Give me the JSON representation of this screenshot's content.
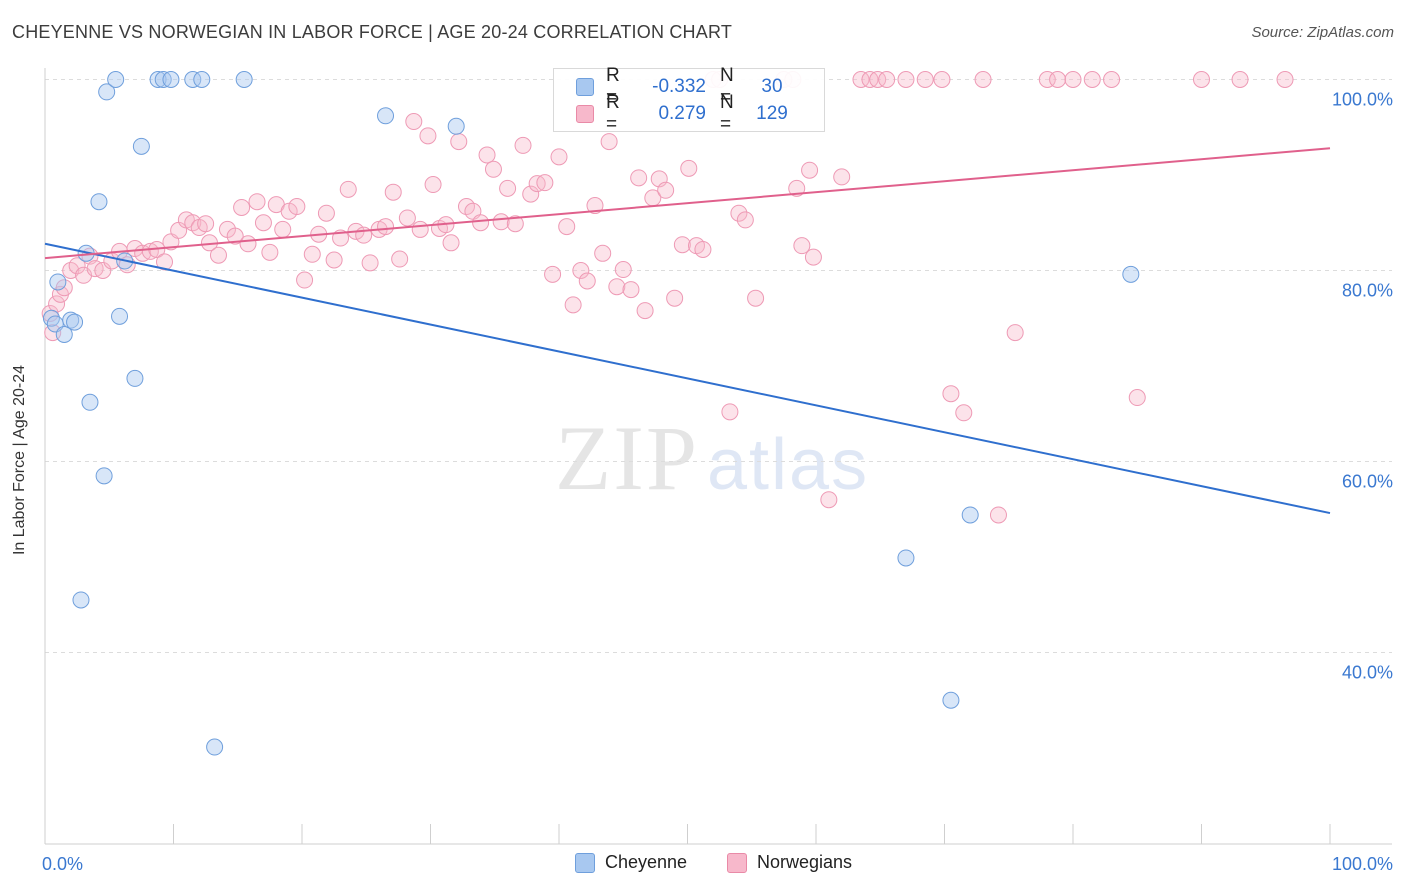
{
  "header": {
    "title": "CHEYENNE VS NORWEGIAN IN LABOR FORCE | AGE 20-24 CORRELATION CHART",
    "source": "Source: ZipAtlas.com"
  },
  "watermark": {
    "zip": "ZIP",
    "atlas": "atlas"
  },
  "legend": {
    "rows": [
      {
        "r_label": "R =",
        "r_value": "-0.332",
        "n_label": "N =",
        "n_value": "30",
        "color": "#a8c8f0",
        "border": "#6f9fdc"
      },
      {
        "r_label": "R =",
        "r_value": "0.279",
        "n_label": "N =",
        "n_value": "129",
        "color": "#f7b8cb",
        "border": "#e98aa7"
      }
    ]
  },
  "bottom_legend": [
    {
      "name": "Cheyenne",
      "color": "#a8c8f0",
      "border": "#6f9fdc"
    },
    {
      "name": "Norwegians",
      "color": "#f7b8cb",
      "border": "#e98aa7"
    }
  ],
  "chart_data": {
    "type": "scatter",
    "title": "CHEYENNE VS NORWEGIAN IN LABOR FORCE | AGE 20-24 CORRELATION CHART",
    "ylabel": "In Labor Force | Age 20-24",
    "xlabel": "",
    "x_tick_labels": [
      "0.0%",
      "100.0%"
    ],
    "y_tick_labels": [
      "100.0%",
      "80.0%",
      "60.0%",
      "40.0%"
    ],
    "y_ticks": [
      100,
      80,
      60,
      40
    ],
    "xlim": [
      0,
      100
    ],
    "ylim": [
      22,
      102
    ],
    "grid": "horizontal dashed",
    "colors": {
      "cheyenne": "#5b93de",
      "cheyenne_line": "#2f6fce",
      "norwegian": "#ee8fae",
      "norwegian_line": "#e0608c"
    },
    "series": [
      {
        "name": "Cheyenne",
        "trend": {
          "x": [
            0,
            100
          ],
          "y": [
            82.8,
            54.6
          ]
        },
        "points": [
          [
            0.5,
            75.0
          ],
          [
            0.8,
            74.4
          ],
          [
            1.0,
            78.8
          ],
          [
            1.5,
            73.3
          ],
          [
            2.0,
            74.8
          ],
          [
            2.3,
            74.6
          ],
          [
            2.8,
            45.5
          ],
          [
            3.2,
            81.8
          ],
          [
            3.5,
            66.2
          ],
          [
            4.2,
            87.2
          ],
          [
            4.6,
            58.5
          ],
          [
            4.8,
            98.7
          ],
          [
            5.5,
            100
          ],
          [
            5.8,
            75.2
          ],
          [
            6.2,
            81.0
          ],
          [
            7.0,
            68.7
          ],
          [
            7.5,
            93.0
          ],
          [
            8.8,
            100
          ],
          [
            9.2,
            100
          ],
          [
            9.8,
            100
          ],
          [
            11.5,
            100
          ],
          [
            12.2,
            100
          ],
          [
            13.2,
            30.1
          ],
          [
            15.5,
            100
          ],
          [
            26.5,
            96.2
          ],
          [
            32.0,
            95.1
          ],
          [
            67.0,
            49.9
          ],
          [
            72.0,
            54.4
          ],
          [
            70.5,
            35.0
          ],
          [
            84.5,
            79.6
          ]
        ]
      },
      {
        "name": "Norwegians",
        "trend": {
          "x": [
            0,
            100
          ],
          "y": [
            81.3,
            92.8
          ]
        },
        "points": [
          [
            0.4,
            75.5
          ],
          [
            0.6,
            73.5
          ],
          [
            0.9,
            76.5
          ],
          [
            1.2,
            77.5
          ],
          [
            1.5,
            78.2
          ],
          [
            2.0,
            80.0
          ],
          [
            2.5,
            80.5
          ],
          [
            3.0,
            79.5
          ],
          [
            3.5,
            81.5
          ],
          [
            3.9,
            80.2
          ],
          [
            4.5,
            80.0
          ],
          [
            5.2,
            81.0
          ],
          [
            5.8,
            82.0
          ],
          [
            6.4,
            80.6
          ],
          [
            7.0,
            82.3
          ],
          [
            7.6,
            81.8
          ],
          [
            8.2,
            82.0
          ],
          [
            8.7,
            82.2
          ],
          [
            9.3,
            80.9
          ],
          [
            9.8,
            83.0
          ],
          [
            10.4,
            84.2
          ],
          [
            11.0,
            85.3
          ],
          [
            11.5,
            85.0
          ],
          [
            12.0,
            84.5
          ],
          [
            12.5,
            84.9
          ],
          [
            12.8,
            82.9
          ],
          [
            13.5,
            81.6
          ],
          [
            14.2,
            84.3
          ],
          [
            14.8,
            83.6
          ],
          [
            15.3,
            86.6
          ],
          [
            15.8,
            82.8
          ],
          [
            16.5,
            87.2
          ],
          [
            17.0,
            85.0
          ],
          [
            17.5,
            81.9
          ],
          [
            18.0,
            86.9
          ],
          [
            18.5,
            84.3
          ],
          [
            19.0,
            86.2
          ],
          [
            19.6,
            86.7
          ],
          [
            20.2,
            79.0
          ],
          [
            20.8,
            81.7
          ],
          [
            21.3,
            83.8
          ],
          [
            21.9,
            86.0
          ],
          [
            22.5,
            81.1
          ],
          [
            23.0,
            83.4
          ],
          [
            23.6,
            88.5
          ],
          [
            24.2,
            84.1
          ],
          [
            24.8,
            83.7
          ],
          [
            25.3,
            80.8
          ],
          [
            26.0,
            84.3
          ],
          [
            26.5,
            84.6
          ],
          [
            27.1,
            88.2
          ],
          [
            27.6,
            81.2
          ],
          [
            28.2,
            85.5
          ],
          [
            28.7,
            95.6
          ],
          [
            29.2,
            84.3
          ],
          [
            29.8,
            94.1
          ],
          [
            30.2,
            89.0
          ],
          [
            30.7,
            84.4
          ],
          [
            31.2,
            84.8
          ],
          [
            31.6,
            82.9
          ],
          [
            32.2,
            93.5
          ],
          [
            32.8,
            86.7
          ],
          [
            33.3,
            86.2
          ],
          [
            33.9,
            85.0
          ],
          [
            34.4,
            92.1
          ],
          [
            34.9,
            90.6
          ],
          [
            35.5,
            85.1
          ],
          [
            36.0,
            88.6
          ],
          [
            36.6,
            84.9
          ],
          [
            37.2,
            93.1
          ],
          [
            37.8,
            88.0
          ],
          [
            38.3,
            89.1
          ],
          [
            38.9,
            89.2
          ],
          [
            39.5,
            79.6
          ],
          [
            40.0,
            91.9
          ],
          [
            40.6,
            84.6
          ],
          [
            41.1,
            76.4
          ],
          [
            41.7,
            80.0
          ],
          [
            42.2,
            78.9
          ],
          [
            42.8,
            86.8
          ],
          [
            43.4,
            81.8
          ],
          [
            43.9,
            93.5
          ],
          [
            44.5,
            78.3
          ],
          [
            45.0,
            80.1
          ],
          [
            45.6,
            78.0
          ],
          [
            46.2,
            89.7
          ],
          [
            46.7,
            75.8
          ],
          [
            47.3,
            87.6
          ],
          [
            47.8,
            89.6
          ],
          [
            48.3,
            88.4
          ],
          [
            49.0,
            77.1
          ],
          [
            49.6,
            82.7
          ],
          [
            50.1,
            90.7
          ],
          [
            50.7,
            82.6
          ],
          [
            51.2,
            82.2
          ],
          [
            52.0,
            100
          ],
          [
            52.5,
            100
          ],
          [
            53.3,
            65.2
          ],
          [
            54.0,
            86.0
          ],
          [
            54.5,
            85.3
          ],
          [
            55.3,
            77.1
          ],
          [
            57.5,
            100
          ],
          [
            58.2,
            100
          ],
          [
            58.5,
            88.6
          ],
          [
            58.9,
            82.6
          ],
          [
            59.5,
            90.5
          ],
          [
            59.8,
            81.4
          ],
          [
            61.0,
            56.0
          ],
          [
            62.0,
            89.8
          ],
          [
            63.5,
            100
          ],
          [
            64.2,
            100
          ],
          [
            64.8,
            100
          ],
          [
            65.5,
            100
          ],
          [
            67.0,
            100
          ],
          [
            68.5,
            100
          ],
          [
            69.8,
            100
          ],
          [
            70.5,
            67.1
          ],
          [
            71.5,
            65.1
          ],
          [
            73.0,
            100
          ],
          [
            74.2,
            54.4
          ],
          [
            75.5,
            73.5
          ],
          [
            78.0,
            100
          ],
          [
            78.8,
            100
          ],
          [
            80.0,
            100
          ],
          [
            81.5,
            100
          ],
          [
            83.0,
            100
          ],
          [
            85.0,
            66.7
          ],
          [
            90.0,
            100
          ],
          [
            93.0,
            100
          ],
          [
            96.5,
            100
          ]
        ]
      }
    ]
  }
}
